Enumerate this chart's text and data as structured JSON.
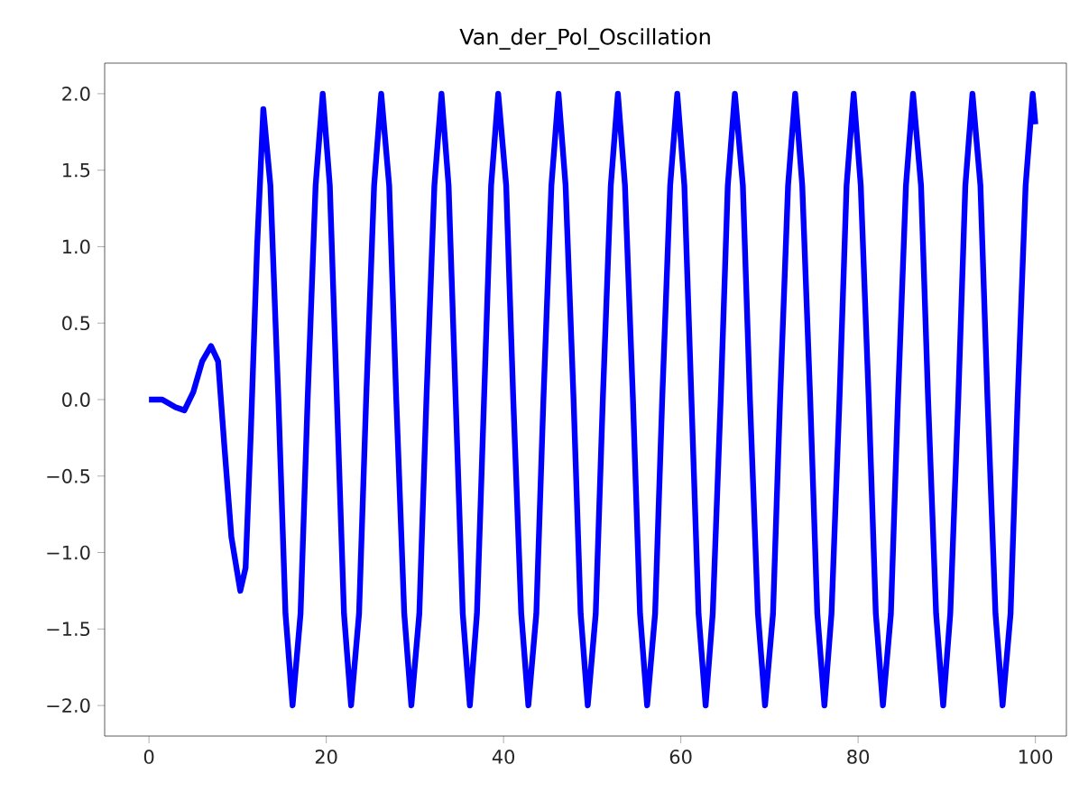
{
  "chart_data": {
    "type": "line",
    "title": "Van_der_Pol_Oscillation",
    "xlim": [
      -5,
      103.5
    ],
    "ylim": [
      -2.2,
      2.2
    ],
    "xticks": [
      0,
      20,
      40,
      60,
      80,
      100
    ],
    "yticks": [
      {
        "value": -2,
        "label": "−2.0"
      },
      {
        "value": -1.5,
        "label": "−1.5"
      },
      {
        "value": -1,
        "label": "−1.0"
      },
      {
        "value": -0.5,
        "label": "−0.5"
      },
      {
        "value": 0,
        "label": "0.0"
      },
      {
        "value": 0.5,
        "label": "0.5"
      },
      {
        "value": 1,
        "label": "1.0"
      },
      {
        "value": 1.5,
        "label": "1.5"
      },
      {
        "value": 2,
        "label": "2.0"
      }
    ],
    "grid": false,
    "legend": false,
    "marker": "none",
    "line_style": "solid",
    "series": [
      {
        "color": "#0000ff",
        "x": [
          0,
          1.5,
          3,
          4,
          5,
          6,
          7,
          7.8,
          8.5,
          9.3,
          10.3,
          10.9,
          11.5,
          12.2,
          12.9,
          13.7,
          14.6,
          15.4,
          16.2,
          17.1,
          17.9,
          18.8,
          19.6,
          20.4,
          21.2,
          22.0,
          22.8,
          23.7,
          24.5,
          25.4,
          26.2,
          27.1,
          27.9,
          28.8,
          29.6,
          30.5,
          31.3,
          32.2,
          33.0,
          33.8,
          34.6,
          35.4,
          36.2,
          37.0,
          37.8,
          38.6,
          39.4,
          40.3,
          41.1,
          42.0,
          42.8,
          43.7,
          44.5,
          45.4,
          46.2,
          47.0,
          47.9,
          48.7,
          49.5,
          50.4,
          51.2,
          52.1,
          52.9,
          53.7,
          54.6,
          55.4,
          56.2,
          57.1,
          57.9,
          58.8,
          59.6,
          60.4,
          61.2,
          62.0,
          62.8,
          63.6,
          64.5,
          65.3,
          66.1,
          67.0,
          67.8,
          68.7,
          69.5,
          70.4,
          71.2,
          72.1,
          72.9,
          73.7,
          74.6,
          75.4,
          76.2,
          77.0,
          77.9,
          78.7,
          79.5,
          80.3,
          81.2,
          82.0,
          82.8,
          83.7,
          84.5,
          85.4,
          86.2,
          87.1,
          87.9,
          88.8,
          89.6,
          90.4,
          91.3,
          92.1,
          92.9,
          93.8,
          94.6,
          95.5,
          96.3,
          97.2,
          98.0,
          98.9,
          99.7,
          100
        ],
        "values": [
          0,
          0,
          -0.05,
          -0.07,
          0.05,
          0.25,
          0.35,
          0.25,
          -0.3,
          -0.9,
          -1.25,
          -1.1,
          -0.2,
          1.0,
          1.9,
          1.4,
          0,
          -1.4,
          -2,
          -1.4,
          0,
          1.4,
          2,
          1.4,
          0,
          -1.4,
          -2,
          -1.4,
          0,
          1.4,
          2,
          1.4,
          0,
          -1.4,
          -2,
          -1.4,
          0,
          1.4,
          2,
          1.4,
          0,
          -1.4,
          -2,
          -1.4,
          0,
          1.4,
          2,
          1.4,
          0,
          -1.4,
          -2,
          -1.4,
          0,
          1.4,
          2,
          1.4,
          0,
          -1.4,
          -2,
          -1.4,
          0,
          1.4,
          2,
          1.4,
          0,
          -1.4,
          -2,
          -1.4,
          0,
          1.4,
          2,
          1.4,
          0,
          -1.4,
          -2,
          -1.4,
          0,
          1.4,
          2,
          1.4,
          0,
          -1.4,
          -2,
          -1.4,
          0,
          1.4,
          2,
          1.4,
          0,
          -1.4,
          -2,
          -1.4,
          0,
          1.4,
          2,
          1.4,
          0,
          -1.4,
          -2,
          -1.4,
          0,
          1.4,
          2,
          1.4,
          0,
          -1.4,
          -2,
          -1.4,
          0,
          1.4,
          2,
          1.4,
          0,
          -1.4,
          -2,
          -1.4,
          0,
          1.4,
          2,
          1.8
        ]
      }
    ]
  }
}
